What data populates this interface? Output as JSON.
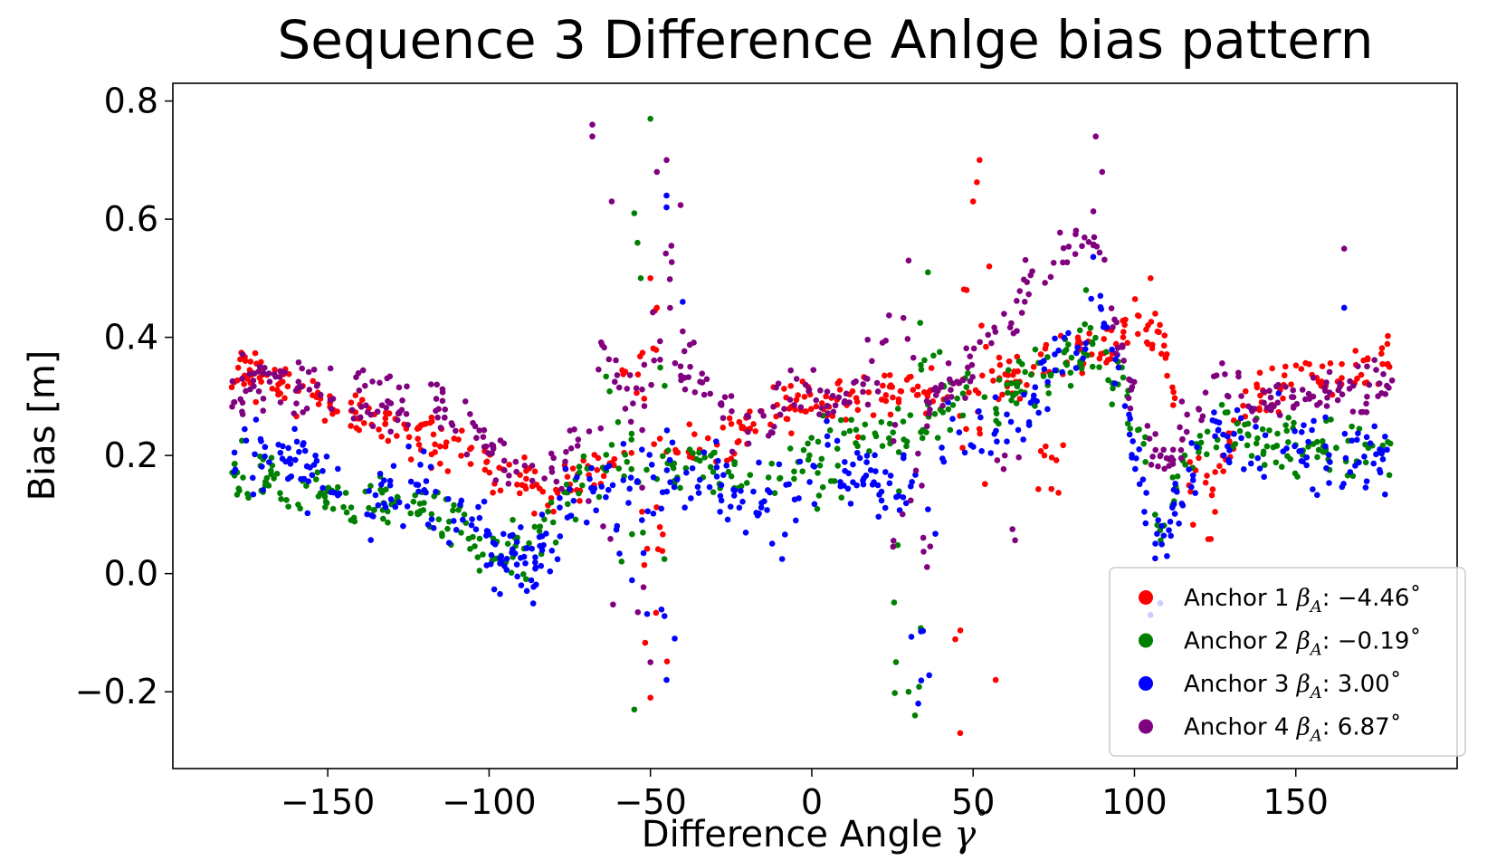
{
  "chart_data": {
    "type": "scatter",
    "title": "Sequence 3 Difference Anlge bias pattern",
    "xlabel": "Difference Angle",
    "xlabel_symbol": "γ",
    "xlabel_sup": "˚",
    "ylabel": "Bias [m]",
    "xlim": [
      -198,
      200
    ],
    "ylim": [
      -0.33,
      0.83
    ],
    "xticks": [
      -150,
      -100,
      -50,
      0,
      50,
      100,
      150
    ],
    "xtick_labels": [
      "−150",
      "−100",
      "−50",
      "0",
      "50",
      "100",
      "150"
    ],
    "yticks": [
      -0.2,
      0.0,
      0.2,
      0.4,
      0.6,
      0.8
    ],
    "ytick_labels": [
      "−0.2",
      "0.0",
      "0.2",
      "0.4",
      "0.6",
      "0.8"
    ],
    "legend_position": "lower-right",
    "series": [
      {
        "name": "Anchor 1",
        "beta_symbol": "β",
        "beta_sub": "A",
        "value_text": ": −4.46˚",
        "color": "#ff0000",
        "profile": [
          [
            -180,
            0.36
          ],
          [
            -165,
            0.32
          ],
          [
            -150,
            0.28
          ],
          [
            -135,
            0.25
          ],
          [
            -120,
            0.23
          ],
          [
            -105,
            0.19
          ],
          [
            -90,
            0.16
          ],
          [
            -80,
            0.13
          ],
          [
            -70,
            0.16
          ],
          [
            -60,
            0.2
          ],
          [
            -50,
            0.23
          ],
          [
            -40,
            0.22
          ],
          [
            -30,
            0.21
          ],
          [
            -15,
            0.26
          ],
          [
            0,
            0.3
          ],
          [
            15,
            0.29
          ],
          [
            30,
            0.32
          ],
          [
            45,
            0.3
          ],
          [
            60,
            0.33
          ],
          [
            75,
            0.36
          ],
          [
            90,
            0.38
          ],
          [
            100,
            0.42
          ],
          [
            108,
            0.4
          ],
          [
            115,
            0.22
          ],
          [
            125,
            0.14
          ],
          [
            135,
            0.3
          ],
          [
            150,
            0.33
          ],
          [
            165,
            0.33
          ],
          [
            180,
            0.36
          ]
        ],
        "spread": 0.02,
        "scatter": [
          [
            -55,
            0.28,
            0.1
          ],
          [
            -50,
            0.4,
            0.15
          ],
          [
            -48,
            0.0,
            0.15
          ],
          [
            45,
            0.05,
            0.3
          ],
          [
            50,
            0.45,
            0.25
          ],
          [
            55,
            0.2,
            0.2
          ],
          [
            75,
            0.18,
            0.05
          ],
          [
            120,
            0.1,
            0.05
          ]
        ],
        "extras": [
          [
            -50,
            -0.21
          ],
          [
            46,
            -0.27
          ],
          [
            52,
            0.7
          ],
          [
            50,
            0.63
          ],
          [
            55,
            0.52
          ],
          [
            48,
            0.48
          ],
          [
            -50,
            0.5
          ],
          [
            -48,
            0.45
          ],
          [
            57,
            -0.18
          ],
          [
            105,
            0.5
          ]
        ],
        "count": 520
      },
      {
        "name": "Anchor 2",
        "beta_symbol": "β",
        "beta_sub": "A",
        "value_text": ": −0.19˚",
        "color": "#008000",
        "profile": [
          [
            -180,
            0.17
          ],
          [
            -165,
            0.16
          ],
          [
            -150,
            0.14
          ],
          [
            -130,
            0.12
          ],
          [
            -115,
            0.1
          ],
          [
            -100,
            0.05
          ],
          [
            -90,
            0.03
          ],
          [
            -80,
            0.1
          ],
          [
            -70,
            0.18
          ],
          [
            -55,
            0.18
          ],
          [
            -40,
            0.18
          ],
          [
            -25,
            0.17
          ],
          [
            -10,
            0.16
          ],
          [
            0,
            0.2
          ],
          [
            15,
            0.22
          ],
          [
            30,
            0.25
          ],
          [
            45,
            0.3
          ],
          [
            60,
            0.3
          ],
          [
            75,
            0.35
          ],
          [
            88,
            0.4
          ],
          [
            95,
            0.3
          ],
          [
            102,
            0.25
          ],
          [
            108,
            0.05
          ],
          [
            115,
            0.18
          ],
          [
            125,
            0.25
          ],
          [
            140,
            0.22
          ],
          [
            160,
            0.22
          ],
          [
            180,
            0.2
          ]
        ],
        "spread": 0.025,
        "scatter": [
          [
            -65,
            0.25,
            0.12
          ],
          [
            -55,
            0.05,
            0.2
          ],
          [
            -50,
            0.2,
            0.2
          ],
          [
            30,
            -0.05,
            0.2
          ],
          [
            35,
            0.35,
            0.12
          ],
          [
            5,
            0.15,
            0.08
          ]
        ],
        "extras": [
          [
            -50,
            0.77
          ],
          [
            -55,
            0.61
          ],
          [
            -55,
            -0.23
          ],
          [
            32,
            -0.24
          ],
          [
            36,
            0.51
          ],
          [
            -54,
            0.56
          ],
          [
            -53,
            0.5
          ],
          [
            30,
            -0.2
          ],
          [
            85,
            0.48
          ]
        ],
        "count": 480
      },
      {
        "name": "Anchor 3",
        "beta_symbol": "β",
        "beta_sub": "A",
        "value_text": ": 3.00˚",
        "color": "#0000ff",
        "profile": [
          [
            -180,
            0.21
          ],
          [
            -165,
            0.2
          ],
          [
            -150,
            0.16
          ],
          [
            -135,
            0.14
          ],
          [
            -120,
            0.13
          ],
          [
            -105,
            0.07
          ],
          [
            -95,
            0.04
          ],
          [
            -85,
            0.02
          ],
          [
            -75,
            0.1
          ],
          [
            -65,
            0.15
          ],
          [
            -55,
            0.12
          ],
          [
            -45,
            0.16
          ],
          [
            -35,
            0.18
          ],
          [
            -20,
            0.12
          ],
          [
            -5,
            0.14
          ],
          [
            5,
            0.2
          ],
          [
            20,
            0.15
          ],
          [
            30,
            0.15
          ],
          [
            45,
            0.25
          ],
          [
            55,
            0.22
          ],
          [
            65,
            0.25
          ],
          [
            75,
            0.35
          ],
          [
            88,
            0.45
          ],
          [
            95,
            0.35
          ],
          [
            102,
            0.15
          ],
          [
            108,
            0.05
          ],
          [
            115,
            0.15
          ],
          [
            125,
            0.25
          ],
          [
            140,
            0.22
          ],
          [
            160,
            0.2
          ],
          [
            180,
            0.2
          ]
        ],
        "spread": 0.03,
        "scatter": [
          [
            -140,
            0.1,
            0.06
          ],
          [
            -55,
            0.05,
            0.18
          ],
          [
            -45,
            0.05,
            0.2
          ],
          [
            35,
            -0.1,
            0.15
          ],
          [
            40,
            0.2,
            0.15
          ],
          [
            -10,
            0.1,
            0.1
          ]
        ],
        "extras": [
          [
            -45,
            0.64
          ],
          [
            -45,
            0.62
          ],
          [
            -40,
            0.46
          ],
          [
            -45,
            -0.18
          ],
          [
            33,
            -0.22
          ],
          [
            105,
            -0.07
          ],
          [
            165,
            0.45
          ],
          [
            108,
            -0.05
          ]
        ],
        "count": 500
      },
      {
        "name": "Anchor 4",
        "beta_symbol": "β",
        "beta_sub": "A",
        "value_text": ": 6.87˚",
        "color": "#800080",
        "profile": [
          [
            -180,
            0.31
          ],
          [
            -165,
            0.32
          ],
          [
            -150,
            0.31
          ],
          [
            -135,
            0.29
          ],
          [
            -120,
            0.29
          ],
          [
            -110,
            0.26
          ],
          [
            -100,
            0.22
          ],
          [
            -90,
            0.18
          ],
          [
            -80,
            0.16
          ],
          [
            -72,
            0.25
          ],
          [
            -65,
            0.35
          ],
          [
            -55,
            0.3
          ],
          [
            -45,
            0.38
          ],
          [
            -35,
            0.33
          ],
          [
            -25,
            0.25
          ],
          [
            -10,
            0.28
          ],
          [
            0,
            0.3
          ],
          [
            10,
            0.3
          ],
          [
            20,
            0.35
          ],
          [
            28,
            0.48
          ],
          [
            35,
            0.28
          ],
          [
            45,
            0.32
          ],
          [
            55,
            0.4
          ],
          [
            65,
            0.45
          ],
          [
            75,
            0.53
          ],
          [
            85,
            0.58
          ],
          [
            90,
            0.55
          ],
          [
            95,
            0.4
          ],
          [
            102,
            0.25
          ],
          [
            108,
            0.18
          ],
          [
            115,
            0.25
          ],
          [
            125,
            0.33
          ],
          [
            140,
            0.3
          ],
          [
            160,
            0.3
          ],
          [
            180,
            0.33
          ]
        ],
        "spread": 0.025,
        "scatter": [
          [
            -65,
            0.1,
            0.2
          ],
          [
            -50,
            0.05,
            0.2
          ],
          [
            -45,
            0.5,
            0.15
          ],
          [
            30,
            0.15,
            0.15
          ],
          [
            35,
            0.1,
            0.12
          ],
          [
            60,
            0.12,
            0.1
          ]
        ],
        "extras": [
          [
            -68,
            0.76
          ],
          [
            -68,
            0.74
          ],
          [
            88,
            0.74
          ],
          [
            -45,
            0.7
          ],
          [
            -48,
            0.68
          ],
          [
            90,
            0.68
          ],
          [
            165,
            0.55
          ],
          [
            -62,
            0.63
          ],
          [
            -50,
            -0.15
          ],
          [
            30,
            0.53
          ]
        ],
        "count": 480
      }
    ]
  }
}
